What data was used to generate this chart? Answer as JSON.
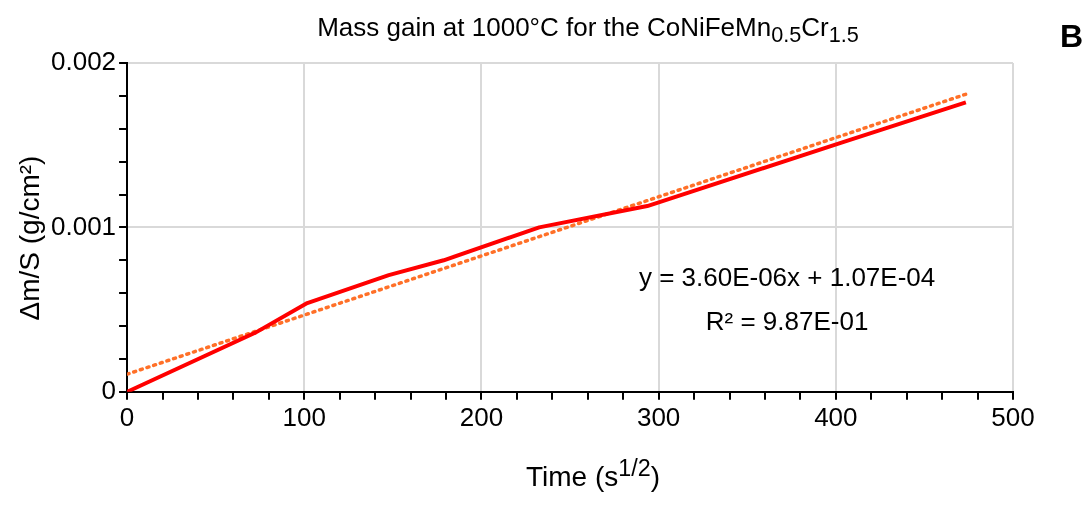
{
  "chart_data": {
    "type": "line",
    "title": "Mass gain at 1000°C for the CoNiFeMn$_{0.5}$Cr$_{1.5}$",
    "xlabel": "Time (s$^{1/2}$)",
    "ylabel": "Δm/S  (g/cm²)",
    "series": [
      {
        "color": "#ff0000",
        "line_style": "solid",
        "x": [
          0,
          72.5,
          101.7,
          147.7,
          178.7,
          232.6,
          293.6,
          404.5,
          473.4
        ],
        "values": [
          0,
          0.00036,
          0.00054,
          0.00071,
          0.0008,
          0.001,
          0.00113,
          0.00152,
          0.00176
        ]
      },
      {
        "color": "#ff7028",
        "line_style": "dotted",
        "x": [
          0,
          473.4
        ],
        "values": [
          0.000107,
          0.00181
        ]
      }
    ],
    "xlim": [
      0,
      500
    ],
    "ylim": [
      0,
      0.002
    ],
    "xticks": [
      0,
      {
        "value": 20,
        "label": null
      },
      {
        "value": 40,
        "label": null
      },
      {
        "value": 60,
        "label": null
      },
      {
        "value": 80,
        "label": null
      },
      100,
      {
        "value": 120,
        "label": null
      },
      {
        "value": 140,
        "label": null
      },
      {
        "value": 160,
        "label": null
      },
      {
        "value": 180,
        "label": null
      },
      200,
      {
        "value": 220,
        "label": null
      },
      {
        "value": 240,
        "label": null
      },
      {
        "value": 260,
        "label": null
      },
      {
        "value": 280,
        "label": null
      },
      300,
      {
        "value": 320,
        "label": null
      },
      {
        "value": 340,
        "label": null
      },
      {
        "value": 360,
        "label": null
      },
      {
        "value": 380,
        "label": null
      },
      400,
      {
        "value": 420,
        "label": null
      },
      {
        "value": 440,
        "label": null
      },
      {
        "value": 460,
        "label": null
      },
      {
        "value": 480,
        "label": null
      },
      500
    ],
    "yticks": [
      0,
      {
        "value": 0.0002,
        "label": null
      },
      {
        "value": 0.0004,
        "label": null
      },
      {
        "value": 0.0006,
        "label": null
      },
      {
        "value": 0.0008,
        "label": null
      },
      {
        "value": 0.001,
        "label": "0.001"
      },
      {
        "value": 0.0012,
        "label": null
      },
      {
        "value": 0.0014,
        "label": null
      },
      {
        "value": 0.0016,
        "label": null
      },
      {
        "value": 0.0018,
        "label": null
      },
      {
        "value": 0.002,
        "label": "0.002"
      }
    ],
    "grid": true,
    "marker": "none",
    "legend": false,
    "annotations": [
      "y = 3.60E-06x + 1.07E-04",
      "R² = 9.87E-01",
      "B"
    ]
  }
}
